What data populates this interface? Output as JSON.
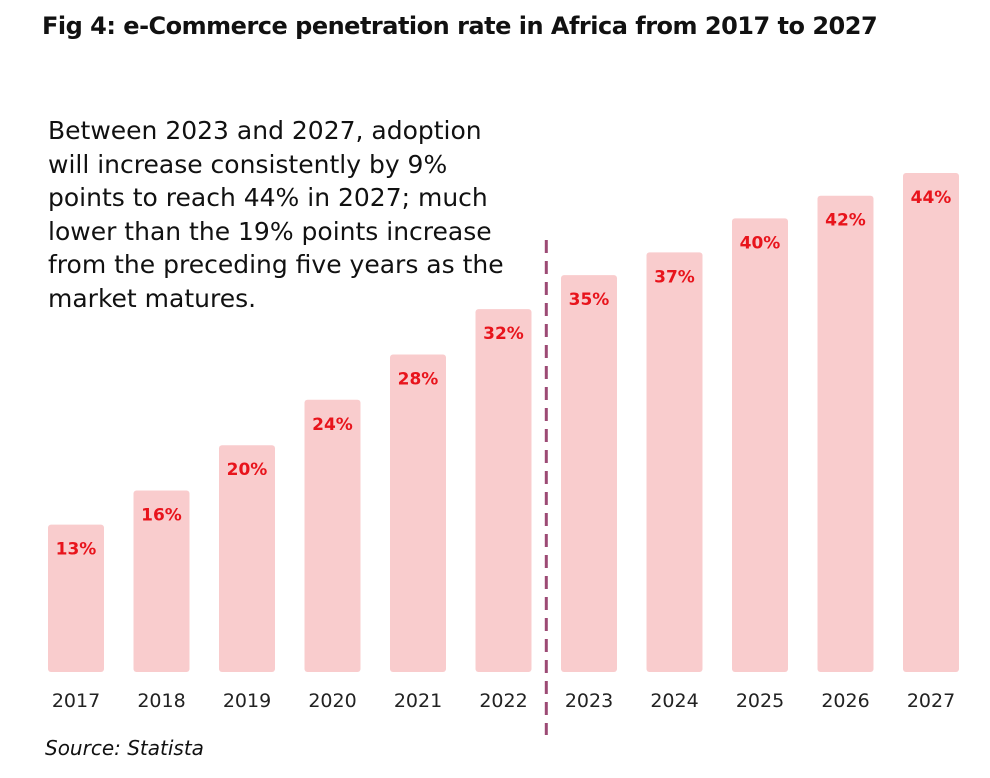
{
  "title": "Fig 4: e-Commerce penetration rate in Africa from 2017 to 2027",
  "annotation": "Between 2023 and 2027, adoption will increase consistently by 9% points to reach 44% in 2027; much lower than the 19% points increase from the preceding five years as the market matures.",
  "source": "Source: Statista",
  "chart_data": {
    "type": "bar",
    "title": "Fig 4: e-Commerce penetration rate in Africa from 2017 to 2027",
    "xlabel": "",
    "ylabel": "",
    "categories": [
      "2017",
      "2018",
      "2019",
      "2020",
      "2021",
      "2022",
      "2023",
      "2024",
      "2025",
      "2026",
      "2027"
    ],
    "values": [
      13,
      16,
      20,
      24,
      28,
      32,
      35,
      37,
      40,
      42,
      44
    ],
    "data_labels": [
      "13%",
      "16%",
      "20%",
      "24%",
      "28%",
      "32%",
      "35%",
      "37%",
      "40%",
      "42%",
      "44%"
    ],
    "ylim": [
      0,
      44
    ],
    "unit": "%",
    "grid": false,
    "legend": "none",
    "divider_between": [
      "2022",
      "2023"
    ],
    "colors": {
      "bar": "#f9cccd",
      "label": "#e8141c",
      "divider": "#9c4a74"
    }
  }
}
